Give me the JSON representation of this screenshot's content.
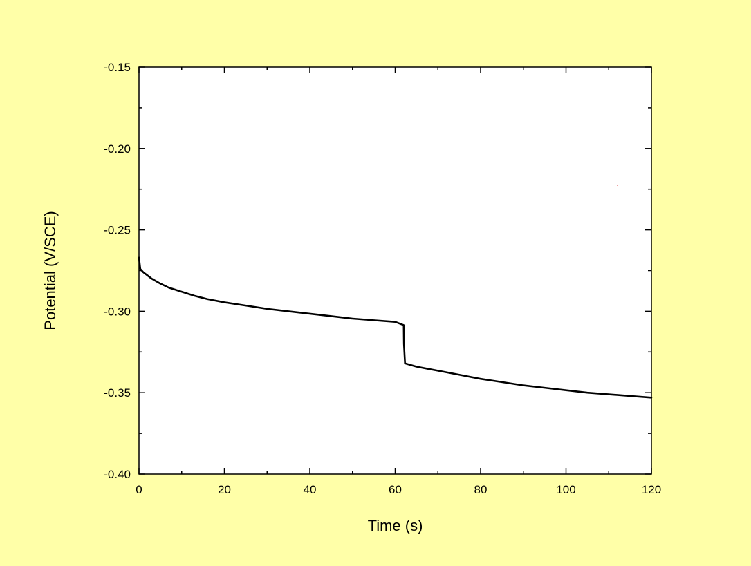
{
  "colors": {
    "background": "#ffffa8",
    "plot_area": "#ffffff",
    "line": "#000000",
    "stray_mark": "#e06060"
  },
  "chart_data": {
    "type": "line",
    "title": "",
    "xlabel": "Time (s)",
    "ylabel": "Potential (V/SCE)",
    "xlim": [
      0,
      120
    ],
    "ylim": [
      -0.4,
      -0.15
    ],
    "x_ticks": [
      "0",
      "20",
      "40",
      "60",
      "80",
      "100",
      "120"
    ],
    "y_ticks": [
      "-0.15",
      "-0.20",
      "-0.25",
      "-0.30",
      "-0.35",
      "-0.40"
    ],
    "grid": false,
    "legend": "none",
    "series": [
      {
        "color": "#000000",
        "x": [
          0,
          0.3,
          1,
          2,
          3,
          5,
          7,
          10,
          13,
          16,
          20,
          25,
          30,
          35,
          40,
          45,
          50,
          55,
          60,
          62,
          62.05,
          62.3,
          63,
          65,
          68,
          70,
          75,
          80,
          85,
          90,
          95,
          100,
          105,
          110,
          115,
          120
        ],
        "y": [
          -0.267,
          -0.274,
          -0.276,
          -0.278,
          -0.28,
          -0.283,
          -0.2855,
          -0.288,
          -0.2905,
          -0.2925,
          -0.2945,
          -0.2965,
          -0.2985,
          -0.3,
          -0.3015,
          -0.303,
          -0.3045,
          -0.3055,
          -0.3065,
          -0.3085,
          -0.32,
          -0.332,
          -0.3325,
          -0.334,
          -0.3355,
          -0.3365,
          -0.339,
          -0.3415,
          -0.3435,
          -0.3455,
          -0.347,
          -0.3485,
          -0.35,
          -0.351,
          -0.352,
          -0.353
        ]
      }
    ]
  }
}
